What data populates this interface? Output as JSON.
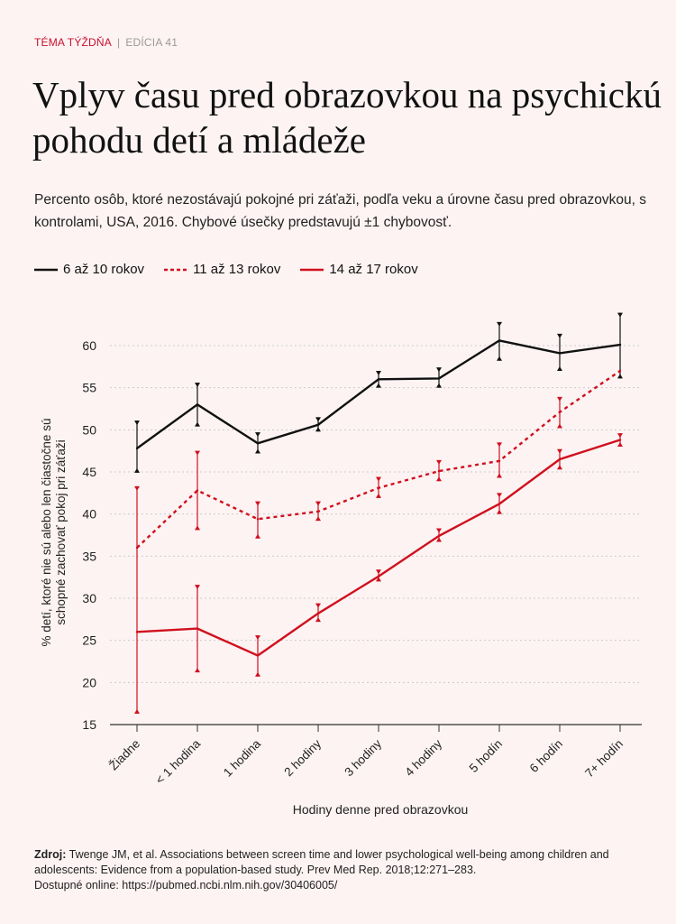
{
  "kicker": {
    "topic": "TÉMA TÝŽDŇA",
    "separator": "|",
    "edition": "EDÍCIA 41"
  },
  "title": "Vplyv času pred obrazovkou na psychickú pohodu detí a mládeže",
  "subtitle": "Percento osôb, ktoré nezostávajú pokojné pri záťaži, podľa veku a úrovne času pred obrazovkou, s kontrolami, USA, 2016. Chybové úsečky predstavujú ±1 chybovosť.",
  "colors": {
    "black": "#111111",
    "red": "#d0101e",
    "background": "#fdf3f3",
    "grid": "#cccccc"
  },
  "chart_data": {
    "type": "line",
    "xlabel": "Hodiny denne pred obrazovkou",
    "ylabel": "% detí, ktoré nie sú alebo len čiastočne sú schopné zachovať pokoj pri záťaži",
    "ylabel_lines": [
      "% detí, ktoré nie sú alebo len čiastočne sú",
      "schopné zachovať pokoj pri záťaži"
    ],
    "ylim": [
      15,
      63
    ],
    "yticks": [
      15,
      20,
      25,
      30,
      35,
      40,
      45,
      50,
      55,
      60
    ],
    "grid": true,
    "legend_position": "top-left",
    "categories": [
      "Žiadne",
      "< 1 hodina",
      "1 hodina",
      "2 hodiny",
      "3 hodiny",
      "4 hodiny",
      "5 hodín",
      "6 hodín",
      "7+ hodín"
    ],
    "series": [
      {
        "name": "6 až 10 rokov",
        "color": "#111111",
        "style": "solid",
        "values": [
          47.8,
          53.0,
          48.4,
          50.6,
          56.0,
          56.1,
          60.6,
          59.1,
          60.1
        ],
        "err_low": [
          44.9,
          50.4,
          47.2,
          49.8,
          55.0,
          55.0,
          58.2,
          57.0,
          56.1
        ],
        "err_high": [
          51.1,
          55.6,
          49.7,
          51.5,
          57.0,
          57.4,
          62.8,
          61.4,
          63.9
        ]
      },
      {
        "name": "11 až 13 rokov",
        "color": "#d0101e",
        "style": "dashed",
        "values": [
          36.0,
          42.8,
          39.4,
          40.3,
          43.1,
          45.1,
          46.3,
          52.1,
          57.0
        ],
        "err_low": [
          null,
          38.1,
          37.1,
          39.2,
          41.9,
          43.9,
          44.3,
          50.2,
          null
        ],
        "err_high": [
          null,
          47.5,
          41.5,
          41.5,
          44.4,
          46.4,
          48.5,
          53.9,
          null
        ]
      },
      {
        "name": "14 až 17 rokov",
        "color": "#d0101e",
        "style": "solid",
        "values": [
          26.0,
          26.4,
          23.2,
          28.2,
          32.6,
          37.4,
          41.2,
          46.5,
          48.8
        ],
        "err_low": [
          16.3,
          21.2,
          20.7,
          27.2,
          32.0,
          36.7,
          40.0,
          45.3,
          48.0
        ],
        "err_high": [
          43.3,
          31.6,
          25.6,
          29.4,
          33.4,
          38.3,
          42.5,
          47.7,
          49.6
        ]
      }
    ]
  },
  "source": {
    "label": "Zdroj:",
    "text": "Twenge JM, et al. Associations between screen time and lower psychological well-being among children and adolescents: Evidence from a population-based study. Prev Med Rep. 2018;12:271–283.",
    "online": "Dostupné online: https://pubmed.ncbi.nlm.nih.gov/30406005/"
  }
}
